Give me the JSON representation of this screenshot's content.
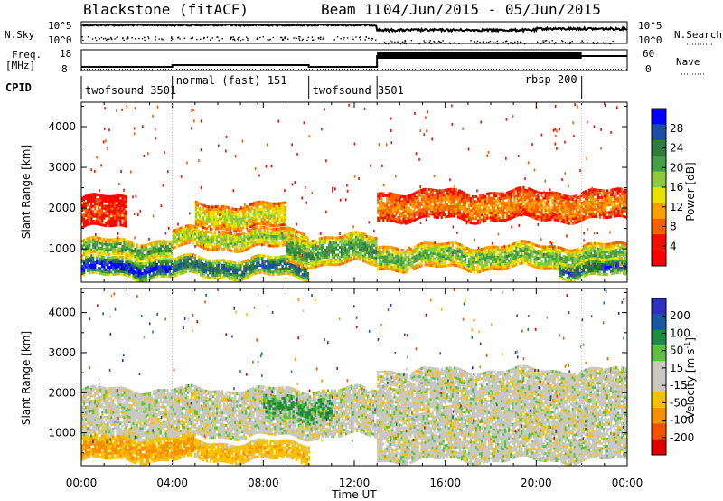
{
  "header": {
    "station": "Blackstone (fitACF)",
    "beam": "Beam 11",
    "date_range": "04/Jun/2015 - 05/Jun/2015"
  },
  "left_labels": {
    "nsky": "N.Sky",
    "freq_top": "Freq.",
    "freq_unit": "[MHz]",
    "cpid": "CPID"
  },
  "right_labels": {
    "nsearch": "N.Search",
    "nave": "Nave"
  },
  "noise_axis": {
    "left_ticks": [
      "10^5",
      "10^0"
    ],
    "right_ticks": [
      "10^5",
      "10^0"
    ]
  },
  "freq_axis": {
    "left_ticks": [
      "18",
      "8"
    ],
    "right_ticks": [
      "60",
      "0"
    ]
  },
  "cpid_segments": [
    {
      "label": "twofsound 3501",
      "start_h": 0,
      "end_h": 4
    },
    {
      "label": "normal (fast) 151",
      "start_h": 4,
      "end_h": 10
    },
    {
      "label": "twofsound 3501",
      "start_h": 10,
      "end_h": 13
    },
    {
      "label": "rbsp 200",
      "start_h": 13,
      "end_h": 22
    }
  ],
  "x_axis": {
    "label": "Time UT",
    "ticks": [
      "00:00",
      "04:00",
      "08:00",
      "12:00",
      "16:00",
      "20:00",
      "00:00"
    ],
    "range_hours": [
      0,
      24
    ]
  },
  "panels": [
    {
      "ylabel": "Slant Range [km]",
      "yticks": [
        "1000",
        "2000",
        "3000",
        "4000"
      ],
      "colorbar": {
        "label": "Power [dB]",
        "ticks": [
          "4",
          "8",
          "12",
          "16",
          "20",
          "24",
          "28"
        ],
        "colors": [
          "#0000ff",
          "#1c4ea8",
          "#2f7c3c",
          "#44a048",
          "#8ec83c",
          "#e8e000",
          "#f8a000",
          "#f86000",
          "#f01000",
          "#ff0000"
        ]
      }
    },
    {
      "ylabel": "Slant Range [km]",
      "yticks": [
        "1000",
        "2000",
        "3000",
        "4000"
      ],
      "colorbar": {
        "label": "Velocity [m s",
        "label_sup": "-1",
        "label_end": "]",
        "ticks": [
          "200",
          "100",
          "50",
          "15",
          "-15",
          "-50",
          "-100",
          "-200"
        ],
        "colors": [
          "#3030c0",
          "#1858a0",
          "#208a40",
          "#5cc040",
          "#c8c8c0",
          "#c8c8c0",
          "#f8c000",
          "#f89000",
          "#f85000",
          "#e00000"
        ]
      }
    }
  ],
  "chart_data": {
    "type": "heatmap",
    "title": "Blackstone (fitACF)",
    "xlabel": "Time UT",
    "x_range_hours": [
      0,
      24
    ],
    "y_range_km": [
      180,
      4600
    ],
    "panels": [
      {
        "quantity": "Power [dB]",
        "zlim": [
          0,
          32
        ],
        "bands": [
          {
            "t_start": 0,
            "t_end": 4,
            "range_low": 300,
            "range_high": 800,
            "value": 30
          },
          {
            "t_start": 0,
            "t_end": 4,
            "range_low": 800,
            "range_high": 1200,
            "value": 22
          },
          {
            "t_start": 0,
            "t_end": 2,
            "range_low": 1500,
            "range_high": 2300,
            "value": 6
          },
          {
            "t_start": 4,
            "t_end": 10,
            "range_low": 300,
            "range_high": 800,
            "value": 26
          },
          {
            "t_start": 4,
            "t_end": 10,
            "range_low": 1000,
            "range_high": 1500,
            "value": 18
          },
          {
            "t_start": 5,
            "t_end": 9,
            "range_low": 1500,
            "range_high": 2100,
            "value": 16
          },
          {
            "t_start": 9,
            "t_end": 13,
            "range_low": 600,
            "range_high": 1300,
            "value": 22
          },
          {
            "t_start": 13,
            "t_end": 24,
            "range_low": 500,
            "range_high": 1100,
            "value": 20
          },
          {
            "t_start": 13,
            "t_end": 24,
            "range_low": 1700,
            "range_high": 2400,
            "value": 10
          },
          {
            "t_start": 21,
            "t_end": 24,
            "range_low": 300,
            "range_high": 700,
            "value": 27
          }
        ]
      },
      {
        "quantity": "Velocity [m s-1]",
        "zlim": [
          -250,
          250
        ],
        "bands": [
          {
            "t_start": 0,
            "t_end": 5,
            "range_low": 300,
            "range_high": 900,
            "value": -60
          },
          {
            "t_start": 5,
            "t_end": 10,
            "range_low": 300,
            "range_high": 800,
            "value": -40
          },
          {
            "t_start": 0,
            "t_end": 13,
            "range_low": 900,
            "range_high": 2100,
            "value": 0
          },
          {
            "t_start": 8,
            "t_end": 11,
            "range_low": 1300,
            "range_high": 1900,
            "value": 30
          },
          {
            "t_start": 13,
            "t_end": 24,
            "range_low": 300,
            "range_high": 2600,
            "value": 0
          }
        ]
      }
    ],
    "legend_placement": "right"
  }
}
